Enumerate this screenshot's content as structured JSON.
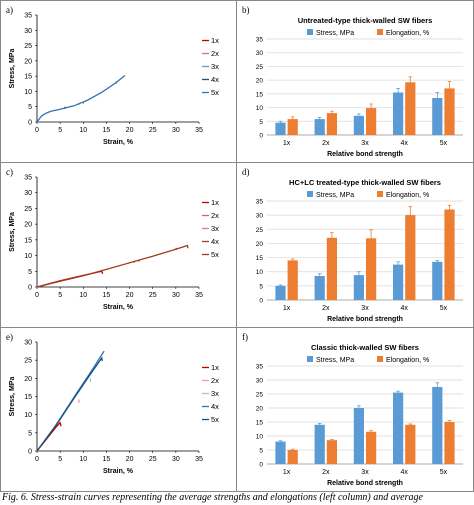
{
  "caption": "Fig. 6.      Stress-strain curves representing the average strengths and elongations (left column) and average",
  "colors": {
    "stress": "#5b9bd5",
    "elongation": "#ed7d31",
    "grid": "#d9d9d9",
    "series_1x": "#c00000",
    "series_2x": "#e07070",
    "series_3x": "#5b9bd5",
    "series_4x": "#1f4e79",
    "series_5x": "#2e75b6",
    "series_c_1x": "#c00000",
    "series_c_2x": "#e06060",
    "series_c_3x": "#d98080",
    "series_c_4x": "#a04020",
    "series_c_5x": "#a33a1f",
    "series_e_1x": "#c00000",
    "series_e_2x": "#f0a0a0",
    "series_e_3x": "#9dc3e6",
    "series_e_4x": "#2e75b6",
    "series_e_5x": "#1f4e79"
  },
  "chart_data": [
    {
      "panel": "a)",
      "type": "line",
      "xlabel": "Strain, %",
      "ylabel": "Stress, MPa",
      "xlim": [
        0,
        35
      ],
      "ylim": [
        0,
        35
      ],
      "xticks": [
        0,
        5,
        10,
        15,
        20,
        25,
        30,
        35
      ],
      "yticks": [
        0,
        5,
        10,
        15,
        20,
        25,
        30,
        35
      ],
      "grid": false,
      "legend_position": "right",
      "series": [
        {
          "name": "1x",
          "color_key": "series_1x",
          "x": [
            6,
            6.1
          ],
          "y": [
            4.3,
            5.0
          ]
        },
        {
          "name": "2x",
          "color_key": "series_2x",
          "x": [
            10,
            10.1
          ],
          "y": [
            6.0,
            6.6
          ]
        },
        {
          "name": "3x",
          "color_key": "series_3x",
          "x": [
            9,
            9.1
          ],
          "y": [
            5.6,
            6.2
          ]
        },
        {
          "name": "4x",
          "color_key": "series_4x",
          "x": [
            17,
            17.2
          ],
          "y": [
            12.5,
            13.3
          ]
        },
        {
          "name": "5x",
          "color_key": "series_5x",
          "x": [
            0,
            0.5,
            1,
            2,
            3,
            5,
            8,
            11,
            14,
            17,
            19
          ],
          "y": [
            0,
            1.0,
            2.0,
            2.9,
            3.5,
            4.2,
            5.3,
            7.2,
            9.7,
            12.8,
            15.2
          ]
        }
      ]
    },
    {
      "panel": "b)",
      "type": "bar",
      "title": "Untreated-type thick-walled SW fibers",
      "xlabel": "Relative bond strength",
      "categories": [
        "1x",
        "2x",
        "3x",
        "4x",
        "5x"
      ],
      "ylim": [
        0,
        35
      ],
      "yticks": [
        0,
        5,
        10,
        15,
        20,
        25,
        30,
        35
      ],
      "grid": true,
      "legend_position": "top",
      "series": [
        {
          "name": "Stress, MPa",
          "color_key": "stress",
          "values": [
            4.5,
            5.8,
            7.0,
            15.5,
            13.5
          ],
          "errors": [
            0.5,
            0.6,
            0.7,
            1.5,
            2.0
          ]
        },
        {
          "name": "Elongation, %",
          "color_key": "elongation",
          "values": [
            5.8,
            8.0,
            9.8,
            19.2,
            17.0
          ],
          "errors": [
            0.8,
            0.7,
            1.5,
            2.0,
            2.5
          ]
        }
      ]
    },
    {
      "panel": "c)",
      "type": "line",
      "xlabel": "Strain, %",
      "ylabel": "Stress, MPa",
      "xlim": [
        0,
        35
      ],
      "ylim": [
        0,
        35
      ],
      "xticks": [
        0,
        5,
        10,
        15,
        20,
        25,
        30,
        35
      ],
      "yticks": [
        0,
        5,
        10,
        15,
        20,
        25,
        30,
        35
      ],
      "grid": false,
      "legend_position": "right",
      "series": [
        {
          "name": "1x",
          "color_key": "series_c_1x",
          "x": [
            0,
            5,
            10,
            14,
            14.2
          ],
          "y": [
            0,
            2.0,
            3.7,
            5.0,
            4.2
          ]
        },
        {
          "name": "2x",
          "color_key": "series_c_2x",
          "x": [
            21,
            21.1
          ],
          "y": [
            7.7,
            8.3
          ]
        },
        {
          "name": "3x",
          "color_key": "series_c_3x",
          "x": [
            22,
            22.1
          ],
          "y": [
            8.0,
            8.6
          ]
        },
        {
          "name": "4x",
          "color_key": "series_c_4x",
          "x": [
            30,
            30.1
          ],
          "y": [
            11.8,
            12.5
          ]
        },
        {
          "name": "5x",
          "color_key": "series_c_5x",
          "x": [
            0,
            5,
            10,
            15,
            20,
            25,
            30,
            32.5,
            32.6
          ],
          "y": [
            0,
            1.8,
            3.6,
            5.6,
            7.7,
            9.8,
            12.0,
            13.2,
            12.3
          ]
        }
      ]
    },
    {
      "panel": "d)",
      "type": "bar",
      "title": "HC+LC treated-type thick-walled SW fibers",
      "xlabel": "Relative bond strength",
      "categories": [
        "1x",
        "2x",
        "3x",
        "4x",
        "5x"
      ],
      "ylim": [
        0,
        35
      ],
      "yticks": [
        0,
        5,
        10,
        15,
        20,
        25,
        30,
        35
      ],
      "grid": true,
      "legend_position": "top",
      "series": [
        {
          "name": "Stress, MPa",
          "color_key": "stress",
          "values": [
            5.0,
            8.5,
            8.8,
            12.5,
            13.5
          ],
          "errors": [
            0.3,
            0.8,
            1.2,
            1.0,
            0.5
          ]
        },
        {
          "name": "Elongation, %",
          "color_key": "elongation",
          "values": [
            14.0,
            22.0,
            21.8,
            30.0,
            32.0
          ],
          "errors": [
            0.5,
            1.8,
            3.0,
            3.0,
            1.5
          ]
        }
      ]
    },
    {
      "panel": "e)",
      "type": "line",
      "xlabel": "Strain, %",
      "ylabel": "Stress, MPa",
      "xlim": [
        0,
        35
      ],
      "ylim": [
        0,
        30
      ],
      "xticks": [
        0,
        5,
        10,
        15,
        20,
        25,
        30,
        35
      ],
      "yticks": [
        0,
        5,
        10,
        15,
        20,
        25,
        30
      ],
      "grid": false,
      "legend_position": "right",
      "series": [
        {
          "name": "1x",
          "color_key": "series_e_1x",
          "x": [
            0,
            2,
            4,
            5,
            5.2
          ],
          "y": [
            0,
            3.2,
            6.4,
            7.8,
            6.8
          ]
        },
        {
          "name": "2x",
          "color_key": "series_e_2x",
          "x": [
            9,
            9.1
          ],
          "y": [
            13.2,
            14.2
          ]
        },
        {
          "name": "3x",
          "color_key": "series_e_3x",
          "x": [
            11.5,
            11.6
          ],
          "y": [
            19.0,
            20.0
          ]
        },
        {
          "name": "4x",
          "color_key": "series_e_4x",
          "x": [
            0,
            4,
            8,
            12,
            14.5
          ],
          "y": [
            0,
            7.0,
            14.8,
            22.5,
            27.5
          ]
        },
        {
          "name": "5x",
          "color_key": "series_e_5x",
          "x": [
            0,
            4,
            8,
            12,
            14,
            14.1
          ],
          "y": [
            0,
            6.8,
            14.5,
            22.0,
            25.6,
            24.8
          ]
        }
      ]
    },
    {
      "panel": "f)",
      "type": "bar",
      "title": "Classic thick-walled SW fibers",
      "xlabel": "Relative bond strength",
      "categories": [
        "1x",
        "2x",
        "3x",
        "4x",
        "5x"
      ],
      "ylim": [
        0,
        35
      ],
      "yticks": [
        0,
        5,
        10,
        15,
        20,
        25,
        30,
        35
      ],
      "grid": true,
      "legend_position": "top",
      "series": [
        {
          "name": "Stress, MPa",
          "color_key": "stress",
          "values": [
            8.0,
            14.0,
            20.0,
            25.5,
            27.5
          ],
          "errors": [
            0.3,
            0.5,
            0.8,
            0.5,
            1.5
          ]
        },
        {
          "name": "Elongation, %",
          "color_key": "elongation",
          "values": [
            5.0,
            8.5,
            11.5,
            14.0,
            15.0
          ],
          "errors": [
            0.3,
            0.3,
            0.4,
            0.3,
            0.5
          ]
        }
      ]
    }
  ]
}
